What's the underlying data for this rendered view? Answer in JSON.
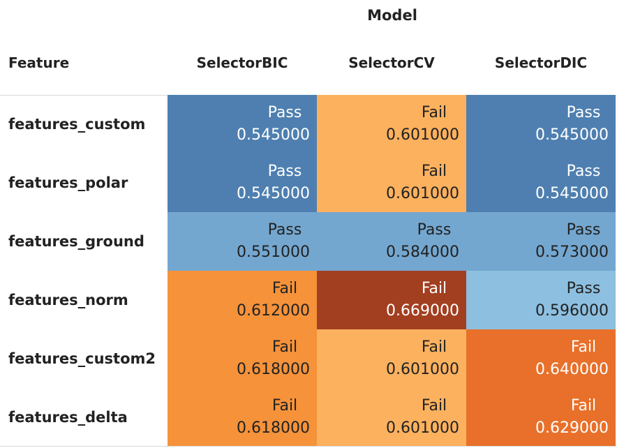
{
  "header": {
    "group_label": "Model",
    "row_header": "Feature"
  },
  "chart_data": {
    "type": "heatmap",
    "title": "",
    "column_group_label": "Model",
    "row_label": "Feature",
    "columns": [
      "SelectorBIC",
      "SelectorCV",
      "SelectorDIC"
    ],
    "rows": [
      "features_custom",
      "features_polar",
      "features_ground",
      "features_norm",
      "features_custom2",
      "features_delta"
    ],
    "status": [
      [
        "Pass",
        "Fail",
        "Pass"
      ],
      [
        "Pass",
        "Fail",
        "Pass"
      ],
      [
        "Pass",
        "Pass",
        "Pass"
      ],
      [
        "Fail",
        "Fail",
        "Pass"
      ],
      [
        "Fail",
        "Fail",
        "Fail"
      ],
      [
        "Fail",
        "Fail",
        "Fail"
      ]
    ],
    "values": [
      [
        0.545,
        0.601,
        0.545
      ],
      [
        0.545,
        0.601,
        0.545
      ],
      [
        0.551,
        0.584,
        0.573
      ],
      [
        0.612,
        0.669,
        0.596
      ],
      [
        0.618,
        0.601,
        0.64
      ],
      [
        0.618,
        0.601,
        0.629
      ]
    ],
    "value_labels": [
      [
        "0.545000",
        "0.601000",
        "0.545000"
      ],
      [
        "0.545000",
        "0.601000",
        "0.545000"
      ],
      [
        "0.551000",
        "0.584000",
        "0.573000"
      ],
      [
        "0.612000",
        "0.669000",
        "0.596000"
      ],
      [
        "0.618000",
        "0.601000",
        "0.640000"
      ],
      [
        "0.618000",
        "0.601000",
        "0.629000"
      ]
    ],
    "colors": {
      "pass_scale": [
        "#4e7fb0",
        "#74a7d0",
        "#8dbfe0"
      ],
      "fail_scale": [
        "#fcb15e",
        "#f5923a",
        "#e8702a",
        "#a23f21"
      ],
      "text_dark": "#222222",
      "text_light": "#ffffff"
    }
  }
}
